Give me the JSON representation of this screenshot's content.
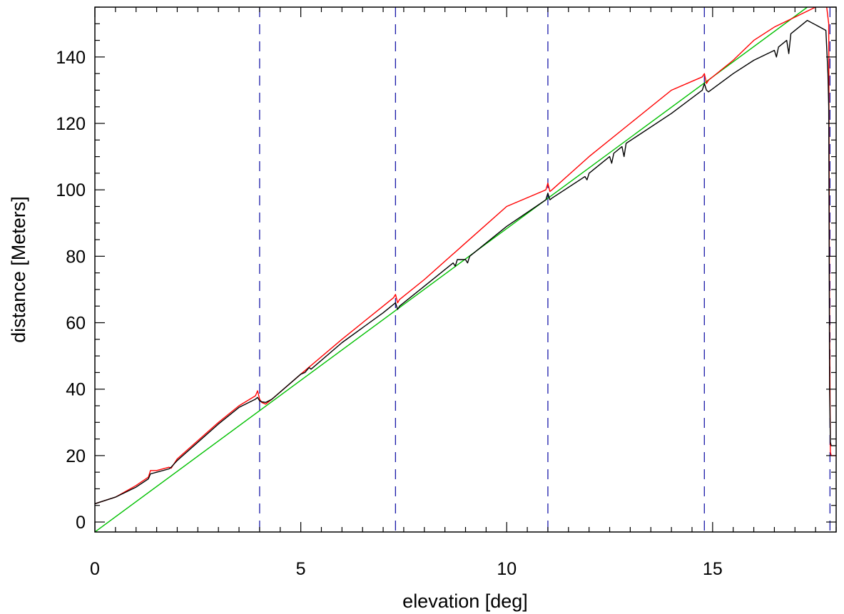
{
  "chart_data": {
    "type": "line",
    "title": "",
    "xlabel": "elevation [deg]",
    "ylabel": "distance [Meters]",
    "xlim": [
      0,
      18
    ],
    "ylim": [
      -3,
      155
    ],
    "x_ticks": [
      0,
      5,
      10,
      15
    ],
    "x_tick_labels": [
      "0",
      "5",
      "10",
      "15"
    ],
    "y_ticks": [
      0,
      20,
      40,
      60,
      80,
      100,
      120,
      140
    ],
    "y_tick_labels": [
      "0",
      "20",
      "40",
      "60",
      "80",
      "100",
      "120",
      "140"
    ],
    "grid": false,
    "vertical_markers": {
      "color": "#1a1aa8",
      "style": "dashed",
      "x": [
        4.0,
        7.3,
        11.0,
        14.8,
        17.85
      ]
    },
    "series": [
      {
        "color": "#00c000",
        "x": [
          0,
          17.3
        ],
        "y": [
          -3,
          155
        ]
      },
      {
        "color": "#ff0000",
        "x": [
          0,
          0.5,
          1.0,
          1.3,
          1.35,
          1.5,
          1.8,
          1.85,
          2.0,
          2.5,
          3.0,
          3.5,
          3.9,
          3.95,
          4.0,
          4.05,
          4.15,
          4.3,
          5.0,
          6.0,
          7.0,
          7.25,
          7.3,
          7.35,
          7.4,
          8.0,
          9.0,
          10.0,
          10.95,
          11.0,
          11.05,
          11.1,
          12.0,
          13.0,
          14.0,
          14.75,
          14.8,
          14.85,
          14.9,
          15.5,
          16.0,
          16.5,
          17.0,
          17.5,
          17.75,
          17.82,
          17.84,
          17.86,
          17.88,
          17.9,
          18.0
        ],
        "y": [
          5.5,
          7.5,
          11,
          13.5,
          15.5,
          15.5,
          16.5,
          16.2,
          19,
          24.5,
          30,
          35,
          38,
          39.5,
          37,
          36,
          35.5,
          37,
          44.5,
          55,
          65,
          67.5,
          68.5,
          66,
          67,
          73,
          84,
          95,
          100,
          102,
          99.5,
          100,
          110,
          120,
          130,
          134,
          135,
          132,
          133,
          139,
          145,
          149,
          152,
          155,
          157,
          150,
          60,
          21,
          20,
          20,
          20
        ]
      },
      {
        "color": "#000000",
        "x": [
          0,
          0.5,
          1.0,
          1.3,
          1.35,
          1.5,
          1.8,
          1.85,
          2.0,
          2.5,
          3.0,
          3.5,
          3.9,
          3.95,
          4.0,
          4.05,
          4.15,
          4.3,
          5.0,
          5.1,
          5.2,
          5.25,
          6.0,
          7.0,
          7.25,
          7.3,
          7.35,
          7.4,
          8.0,
          8.7,
          8.75,
          8.8,
          9.0,
          9.05,
          9.1,
          10.0,
          10.95,
          11.0,
          11.05,
          11.1,
          11.9,
          11.95,
          12.0,
          12.5,
          12.55,
          12.6,
          12.8,
          12.85,
          12.9,
          14.0,
          14.75,
          14.8,
          14.85,
          14.9,
          15.5,
          16.0,
          16.5,
          16.55,
          16.6,
          16.8,
          16.85,
          16.9,
          17.2,
          17.3,
          17.6,
          17.75,
          17.8,
          17.82,
          17.84,
          17.86,
          17.88,
          17.9,
          18.0
        ],
        "y": [
          5.5,
          7.5,
          10.5,
          13,
          14.5,
          15,
          16,
          16.5,
          18.5,
          24,
          29.5,
          34.5,
          37,
          37.5,
          36.5,
          36.2,
          36,
          37,
          44.5,
          45,
          46.5,
          46,
          54,
          63,
          65.5,
          66,
          64,
          65,
          71,
          78,
          77,
          79,
          79,
          78,
          80,
          89,
          97,
          99,
          97,
          97.5,
          104,
          103,
          105,
          110,
          108,
          111,
          113,
          110,
          114,
          123,
          130,
          132,
          130,
          129.5,
          135,
          139,
          142,
          140,
          143,
          145,
          141,
          147,
          150,
          151,
          149,
          148,
          135,
          125,
          40,
          24,
          23,
          23,
          23
        ]
      }
    ]
  }
}
